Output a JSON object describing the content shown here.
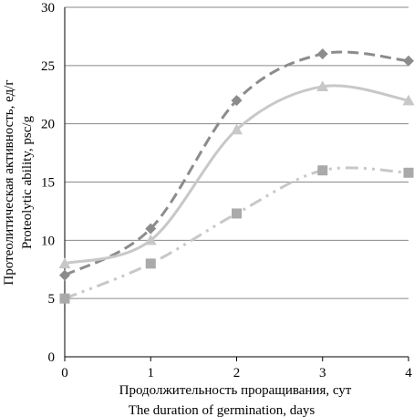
{
  "chart_data": {
    "type": "line",
    "x": [
      0,
      1,
      2,
      3,
      4
    ],
    "xlim": [
      0,
      4
    ],
    "ylim": [
      0,
      30
    ],
    "x_ticks": [
      "0",
      "1",
      "2",
      "3",
      "4"
    ],
    "y_ticks": [
      "0",
      "5",
      "10",
      "15",
      "20",
      "25",
      "30"
    ],
    "xlabel_ru": "Продолжительность проращивания, сут",
    "xlabel_en": "The duration of germination, days",
    "ylabel_ru": "Протеолитическая  активность, ед/г",
    "ylabel_en": "Proteolytic ability, psc/g",
    "grid": "horizontal",
    "series": [
      {
        "values": [
          7,
          11,
          22,
          26,
          25.4
        ],
        "marker": "diamond",
        "line": "dashed",
        "color": "#8c8c8c"
      },
      {
        "values": [
          8,
          10,
          19.5,
          23.2,
          22
        ],
        "marker": "triangle",
        "line": "solid",
        "color": "#c8c8c8"
      },
      {
        "values": [
          5,
          8,
          12.3,
          16,
          15.8
        ],
        "marker": "square",
        "line": "dash-dot-dot",
        "color": "#c8c8c8",
        "marker_color": "#aaaaaa"
      }
    ]
  }
}
